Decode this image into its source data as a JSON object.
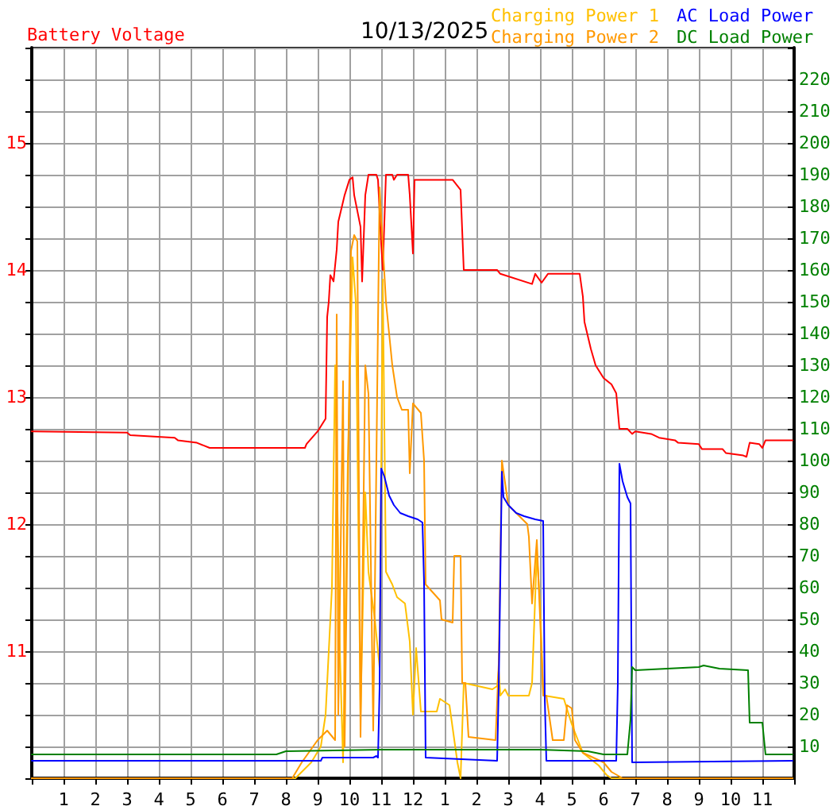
{
  "chart_data": {
    "type": "line",
    "title": "10/13/2025",
    "xlim": [
      "2025-10-13T00:00",
      "2025-10-14T00:00"
    ],
    "xticks": [
      {
        "value": "2025-10-13T01:00",
        "label": "1"
      },
      {
        "value": "2025-10-13T02:00",
        "label": "2"
      },
      {
        "value": "2025-10-13T03:00",
        "label": "3"
      },
      {
        "value": "2025-10-13T04:00",
        "label": "4"
      },
      {
        "value": "2025-10-13T05:00",
        "label": "5"
      },
      {
        "value": "2025-10-13T06:00",
        "label": "6"
      },
      {
        "value": "2025-10-13T07:00",
        "label": "7"
      },
      {
        "value": "2025-10-13T08:00",
        "label": "8"
      },
      {
        "value": "2025-10-13T09:00",
        "label": "9"
      },
      {
        "value": "2025-10-13T10:00",
        "label": "10"
      },
      {
        "value": "2025-10-13T11:00",
        "label": "11"
      },
      {
        "value": "2025-10-13T12:00",
        "label": "12"
      },
      {
        "value": "2025-10-13T13:00",
        "label": "1"
      },
      {
        "value": "2025-10-13T14:00",
        "label": "2"
      },
      {
        "value": "2025-10-13T15:00",
        "label": "3"
      },
      {
        "value": "2025-10-13T16:00",
        "label": "4"
      },
      {
        "value": "2025-10-13T17:00",
        "label": "5"
      },
      {
        "value": "2025-10-13T18:00",
        "label": "6"
      },
      {
        "value": "2025-10-13T19:00",
        "label": "7"
      },
      {
        "value": "2025-10-13T20:00",
        "label": "8"
      },
      {
        "value": "2025-10-13T21:00",
        "label": "9"
      },
      {
        "value": "2025-10-13T22:00",
        "label": "10"
      },
      {
        "value": "2025-10-13T23:00",
        "label": "11"
      }
    ],
    "ylim": [
      10,
      15.75
    ],
    "yticks": [
      {
        "value": 10.25,
        "label": null
      },
      {
        "value": 10.5,
        "label": null
      },
      {
        "value": 10.75,
        "label": null
      },
      11,
      {
        "value": 11.25,
        "label": null
      },
      {
        "value": 11.5,
        "label": null
      },
      {
        "value": 11.75,
        "label": null
      },
      12,
      {
        "value": 12.25,
        "label": null
      },
      {
        "value": 12.5,
        "label": null
      },
      {
        "value": 12.75,
        "label": null
      },
      13,
      {
        "value": 13.25,
        "label": null
      },
      {
        "value": 13.5,
        "label": null
      },
      {
        "value": 13.75,
        "label": null
      },
      14,
      {
        "value": 14.25,
        "label": null
      },
      {
        "value": 14.5,
        "label": null
      },
      {
        "value": 14.75,
        "label": null
      },
      15,
      {
        "value": 15.25,
        "label": null
      },
      {
        "value": 15.5,
        "label": null
      }
    ],
    "y2lim": [
      0,
      230
    ],
    "y2ticks": [
      10,
      20,
      30,
      40,
      50,
      60,
      70,
      80,
      90,
      100,
      110,
      120,
      130,
      140,
      150,
      160,
      170,
      180,
      190,
      200,
      210,
      220
    ],
    "grid": true,
    "legend": "top",
    "marker": "none",
    "line_style": "solid",
    "series": [
      {
        "name": "Battery Voltage",
        "color": "#ff0000",
        "x": [
          "2025-10-13T00:00",
          "2025-10-13T03:00",
          "2025-10-13T03:06",
          "2025-10-13T04:30",
          "2025-10-13T04:36",
          "2025-10-13T05:12",
          "2025-10-13T05:36",
          "2025-10-13T08:36",
          "2025-10-13T08:39",
          "2025-10-13T09:00",
          "2025-10-13T09:15",
          "2025-10-13T09:18",
          "2025-10-13T09:21",
          "2025-10-13T09:24",
          "2025-10-13T09:30",
          "2025-10-13T09:36",
          "2025-10-13T09:39",
          "2025-10-13T09:51",
          "2025-10-13T10:00",
          "2025-10-13T10:06",
          "2025-10-13T10:09",
          "2025-10-13T10:21",
          "2025-10-13T10:24",
          "2025-10-13T10:30",
          "2025-10-13T10:36",
          "2025-10-13T10:51",
          "2025-10-13T10:54",
          "2025-10-13T11:00",
          "2025-10-13T11:03",
          "2025-10-13T11:09",
          "2025-10-13T11:21",
          "2025-10-13T11:24",
          "2025-10-13T11:30",
          "2025-10-13T11:51",
          "2025-10-13T11:54",
          "2025-10-13T12:00",
          "2025-10-13T12:03",
          "2025-10-13T13:15",
          "2025-10-13T13:30",
          "2025-10-13T13:36",
          "2025-10-13T14:39",
          "2025-10-13T14:45",
          "2025-10-13T15:45",
          "2025-10-13T15:51",
          "2025-10-13T16:03",
          "2025-10-13T16:15",
          "2025-10-13T16:48",
          "2025-10-13T17:15",
          "2025-10-13T17:21",
          "2025-10-13T17:24",
          "2025-10-13T17:36",
          "2025-10-13T17:45",
          "2025-10-13T18:00",
          "2025-10-13T18:15",
          "2025-10-13T18:24",
          "2025-10-13T18:30",
          "2025-10-13T18:45",
          "2025-10-13T18:54",
          "2025-10-13T19:00",
          "2025-10-13T19:30",
          "2025-10-13T19:45",
          "2025-10-13T20:15",
          "2025-10-13T20:21",
          "2025-10-13T21:00",
          "2025-10-13T21:06",
          "2025-10-13T21:45",
          "2025-10-13T21:51",
          "2025-10-13T22:24",
          "2025-10-13T22:30",
          "2025-10-13T22:36",
          "2025-10-13T22:54",
          "2025-10-13T23:00",
          "2025-10-13T23:06",
          "2025-10-13T23:57"
        ],
        "values": [
          12.73,
          12.72,
          12.7,
          12.68,
          12.66,
          12.64,
          12.6,
          12.6,
          12.63,
          12.73,
          12.83,
          13.63,
          13.75,
          13.96,
          13.91,
          14.16,
          14.38,
          14.59,
          14.71,
          14.73,
          14.59,
          14.34,
          13.91,
          14.59,
          14.75,
          14.75,
          14.71,
          14.21,
          14.0,
          14.75,
          14.75,
          14.71,
          14.75,
          14.75,
          14.59,
          14.13,
          14.71,
          14.71,
          14.63,
          14.0,
          14.0,
          13.97,
          13.89,
          13.97,
          13.9,
          13.97,
          13.97,
          13.97,
          13.79,
          13.59,
          13.38,
          13.25,
          13.15,
          13.1,
          13.03,
          12.75,
          12.75,
          12.71,
          12.73,
          12.71,
          12.68,
          12.66,
          12.64,
          12.63,
          12.59,
          12.59,
          12.56,
          12.54,
          12.53,
          12.64,
          12.63,
          12.6,
          12.66,
          12.66
        ]
      },
      {
        "name": "Charging Power 1",
        "color": "#ffc000",
        "axis": "y2",
        "x": [
          "2025-10-13T00:00",
          "2025-10-13T08:18",
          "2025-10-13T08:48",
          "2025-10-13T09:06",
          "2025-10-13T09:15",
          "2025-10-13T09:27",
          "2025-10-13T09:33",
          "2025-10-13T09:42",
          "2025-10-13T09:48",
          "2025-10-13T09:57",
          "2025-10-13T10:06",
          "2025-10-13T10:12",
          "2025-10-13T10:21",
          "2025-10-13T10:30",
          "2025-10-13T10:36",
          "2025-10-13T10:48",
          "2025-10-13T10:57",
          "2025-10-13T11:03",
          "2025-10-13T11:09",
          "2025-10-13T11:21",
          "2025-10-13T11:30",
          "2025-10-13T11:45",
          "2025-10-13T11:54",
          "2025-10-13T12:00",
          "2025-10-13T12:06",
          "2025-10-13T12:15",
          "2025-10-13T12:45",
          "2025-10-13T12:51",
          "2025-10-13T13:09",
          "2025-10-13T13:24",
          "2025-10-13T13:30",
          "2025-10-13T13:36",
          "2025-10-13T14:30",
          "2025-10-13T14:39",
          "2025-10-13T14:42",
          "2025-10-13T14:45",
          "2025-10-13T14:54",
          "2025-10-13T15:00",
          "2025-10-13T15:39",
          "2025-10-13T15:45",
          "2025-10-13T15:54",
          "2025-10-13T16:00",
          "2025-10-13T16:06",
          "2025-10-13T16:09",
          "2025-10-13T16:45",
          "2025-10-13T17:00",
          "2025-10-13T17:21",
          "2025-10-13T17:36",
          "2025-10-13T17:51",
          "2025-10-13T18:06",
          "2025-10-13T18:15",
          "2025-10-13T23:57"
        ],
        "values": [
          0,
          0,
          5,
          10,
          20,
          60,
          130,
          40,
          5,
          100,
          164,
          150,
          20,
          90,
          65,
          50,
          35,
          157,
          65,
          61,
          57,
          55,
          43,
          20,
          41,
          21,
          21,
          25,
          23,
          5,
          0,
          30,
          28,
          29,
          34,
          26,
          28,
          26,
          26,
          30,
          71,
          55,
          28,
          26,
          25,
          17,
          8,
          6,
          4,
          1,
          0,
          0
        ]
      },
      {
        "name": "Charging Power 2",
        "color": "#ff9900",
        "axis": "y2",
        "x": [
          "2025-10-13T00:00",
          "2025-10-13T08:12",
          "2025-10-13T08:30",
          "2025-10-13T09:00",
          "2025-10-13T09:18",
          "2025-10-13T09:33",
          "2025-10-13T09:36",
          "2025-10-13T09:39",
          "2025-10-13T09:48",
          "2025-10-13T09:51",
          "2025-10-13T10:03",
          "2025-10-13T10:09",
          "2025-10-13T10:15",
          "2025-10-13T10:21",
          "2025-10-13T10:30",
          "2025-10-13T10:36",
          "2025-10-13T10:45",
          "2025-10-13T10:57",
          "2025-10-13T11:09",
          "2025-10-13T11:15",
          "2025-10-13T11:21",
          "2025-10-13T11:30",
          "2025-10-13T11:39",
          "2025-10-13T11:51",
          "2025-10-13T11:54",
          "2025-10-13T12:00",
          "2025-10-13T12:15",
          "2025-10-13T12:21",
          "2025-10-13T12:24",
          "2025-10-13T12:51",
          "2025-10-13T12:54",
          "2025-10-13T13:15",
          "2025-10-13T13:18",
          "2025-10-13T13:30",
          "2025-10-13T13:33",
          "2025-10-13T13:39",
          "2025-10-13T13:45",
          "2025-10-13T14:36",
          "2025-10-13T14:42",
          "2025-10-13T14:48",
          "2025-10-13T15:00",
          "2025-10-13T15:36",
          "2025-10-13T15:39",
          "2025-10-13T15:45",
          "2025-10-13T15:54",
          "2025-10-13T16:00",
          "2025-10-13T16:06",
          "2025-10-13T16:12",
          "2025-10-13T16:24",
          "2025-10-13T16:45",
          "2025-10-13T16:51",
          "2025-10-13T17:00",
          "2025-10-13T17:06",
          "2025-10-13T17:21",
          "2025-10-13T18:00",
          "2025-10-13T18:15",
          "2025-10-13T18:36",
          "2025-10-13T23:57"
        ],
        "values": [
          0,
          0,
          5,
          12,
          15,
          12,
          146,
          20,
          125,
          10,
          166,
          171,
          169,
          13,
          130,
          121,
          15,
          186,
          150,
          140,
          130,
          120,
          116,
          116,
          96,
          118,
          115,
          100,
          61,
          56,
          50,
          49,
          70,
          70,
          30,
          30,
          13,
          12,
          36,
          100,
          86,
          80,
          76,
          55,
          75,
          51,
          26,
          26,
          12,
          12,
          23,
          22,
          12,
          8,
          5,
          2,
          0,
          0
        ]
      },
      {
        "name": "AC Load Power",
        "color": "#0000ff",
        "axis": "y2",
        "x": [
          "2025-10-13T00:00",
          "2025-10-13T09:06",
          "2025-10-13T09:09",
          "2025-10-13T10:45",
          "2025-10-13T10:51",
          "2025-10-13T10:54",
          "2025-10-13T10:57",
          "2025-10-13T11:00",
          "2025-10-13T11:06",
          "2025-10-13T11:15",
          "2025-10-13T11:24",
          "2025-10-13T11:36",
          "2025-10-13T11:51",
          "2025-10-13T12:09",
          "2025-10-13T12:18",
          "2025-10-13T12:21",
          "2025-10-13T12:24",
          "2025-10-13T14:39",
          "2025-10-13T14:42",
          "2025-10-13T14:48",
          "2025-10-13T14:51",
          "2025-10-13T15:00",
          "2025-10-13T15:15",
          "2025-10-13T15:30",
          "2025-10-13T15:51",
          "2025-10-13T16:06",
          "2025-10-13T16:09",
          "2025-10-13T16:12",
          "2025-10-13T18:24",
          "2025-10-13T18:27",
          "2025-10-13T18:30",
          "2025-10-13T18:36",
          "2025-10-13T18:45",
          "2025-10-13T18:51",
          "2025-10-13T18:54",
          "2025-10-13T23:57"
        ],
        "values": [
          5.5,
          5.5,
          6.5,
          6.5,
          7,
          6.5,
          28.5,
          97.5,
          95,
          89,
          86,
          83.5,
          82.5,
          81.5,
          80.5,
          61.5,
          6.5,
          5.5,
          28.5,
          96.5,
          88.5,
          86,
          83.5,
          82.5,
          81.5,
          81,
          25,
          5.5,
          5.5,
          30,
          99,
          93.5,
          88.5,
          86.5,
          5,
          5.5
        ]
      },
      {
        "name": "DC Load Power",
        "color": "#008000",
        "axis": "y2",
        "x": [
          "2025-10-13T00:00",
          "2025-10-13T07:42",
          "2025-10-13T08:00",
          "2025-10-13T11:00",
          "2025-10-13T16:00",
          "2025-10-13T17:30",
          "2025-10-13T18:00",
          "2025-10-13T18:45",
          "2025-10-13T18:51",
          "2025-10-13T18:54",
          "2025-10-13T19:00",
          "2025-10-13T21:00",
          "2025-10-13T21:09",
          "2025-10-13T21:39",
          "2025-10-13T22:33",
          "2025-10-13T22:36",
          "2025-10-13T23:00",
          "2025-10-13T23:06",
          "2025-10-13T23:57"
        ],
        "values": [
          7.5,
          7.5,
          8.5,
          9,
          9,
          8.5,
          7.5,
          7.5,
          18.5,
          35,
          34,
          35,
          35.5,
          34.5,
          34,
          17.5,
          17.5,
          7.5,
          7.5
        ]
      }
    ]
  }
}
